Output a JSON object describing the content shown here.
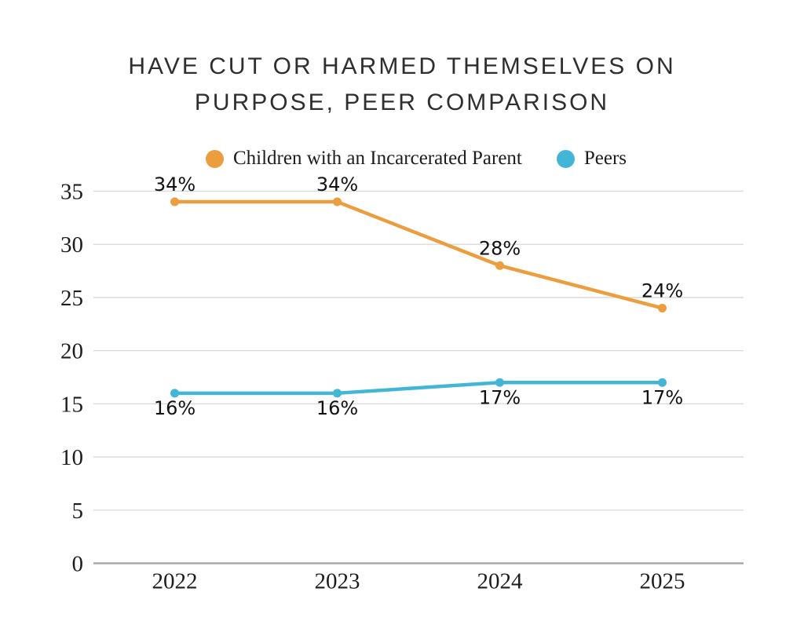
{
  "chart_data": {
    "type": "line",
    "title": "Have cut or harmed themselves on purpose, peer comparison",
    "categories": [
      "2022",
      "2023",
      "2024",
      "2025"
    ],
    "series": [
      {
        "name": "Children with an Incarcerated Parent",
        "color": "#EC9E3E",
        "values": [
          34,
          34,
          28,
          24
        ],
        "labels": [
          "34%",
          "34%",
          "28%",
          "24%"
        ],
        "label_position": "above"
      },
      {
        "name": "Peers",
        "color": "#43B6D6",
        "values": [
          16,
          16,
          17,
          17
        ],
        "labels": [
          "16%",
          "16%",
          "17%",
          "17%"
        ],
        "label_position": "below"
      }
    ],
    "yticks": [
      0,
      5,
      10,
      15,
      20,
      25,
      30,
      35
    ],
    "ylim": [
      0,
      35
    ],
    "xlabel": "",
    "ylabel": "",
    "grid": true,
    "legend_position": "top"
  },
  "colors": {
    "background": "#FFFFFF",
    "gridline": "#D8D8D8",
    "axis_line": "#A9A9A9",
    "tick_text": "#1C1C1C",
    "title_text": "#2E2E2E",
    "data_label_text": "#111111"
  }
}
